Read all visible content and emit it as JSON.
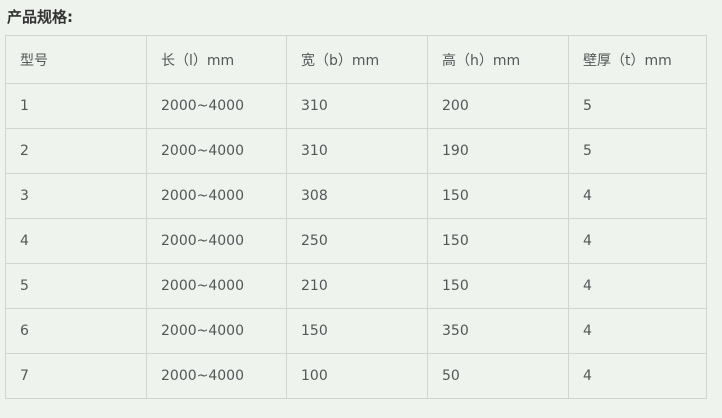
{
  "page": {
    "title": "产品规格:"
  },
  "table": {
    "headers": [
      "型号",
      "长（l）mm",
      "宽（b）mm",
      "高（h）mm",
      "壁厚（t）mm"
    ],
    "rows": [
      [
        "1",
        "2000~4000",
        "310",
        "200",
        "5"
      ],
      [
        "2",
        "2000~4000",
        "310",
        "190",
        "5"
      ],
      [
        "3",
        "2000~4000",
        "308",
        "150",
        "4"
      ],
      [
        "4",
        "2000~4000",
        "250",
        "150",
        "4"
      ],
      [
        "5",
        "2000~4000",
        "210",
        "150",
        "4"
      ],
      [
        "6",
        "2000~4000",
        "150",
        "350",
        "4"
      ],
      [
        "7",
        "2000~4000",
        "100",
        "50",
        "4"
      ]
    ]
  },
  "colors": {
    "background": "#eff3ed",
    "border": "#cfd6cb",
    "cell_text": "#545658",
    "title_text": "#333333"
  }
}
